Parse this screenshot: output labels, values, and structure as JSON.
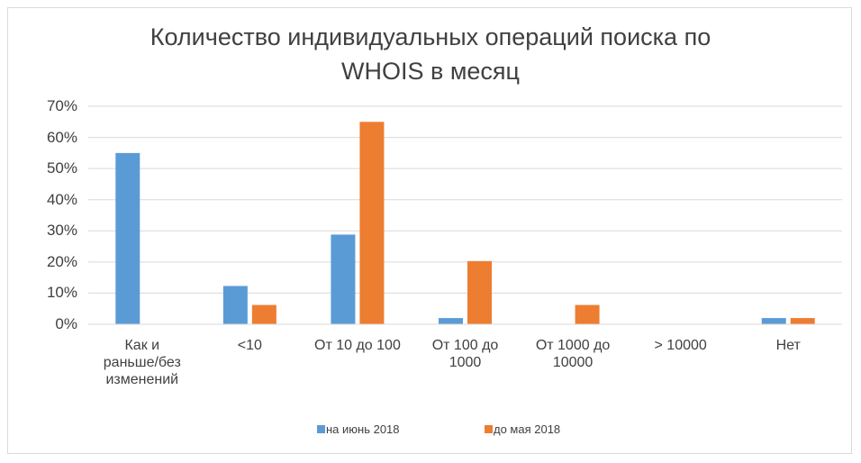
{
  "chart_data": {
    "type": "bar",
    "title": "Количество индивидуальных операций поиска по WHOIS в месяц",
    "categories": [
      "Как и раньше/без изменений",
      "<10",
      "От 10 до 100",
      "От 100 до 1000",
      "От 1000 до 10000",
      "> 10000",
      "Нет"
    ],
    "series": [
      {
        "name": "на июнь 2018",
        "color": "#5b9bd5",
        "values": [
          55,
          12.3,
          28.8,
          2,
          0,
          0,
          2
        ]
      },
      {
        "name": "до мая 2018",
        "color": "#ed7d31",
        "values": [
          0,
          6.2,
          65,
          20.3,
          6.2,
          0,
          2
        ]
      }
    ],
    "ylim": [
      0,
      70
    ],
    "yticks": [
      {
        "value": 0,
        "label": "0%"
      },
      {
        "value": 10,
        "label": "10%"
      },
      {
        "value": 20,
        "label": "20%"
      },
      {
        "value": 30,
        "label": "30%"
      },
      {
        "value": 40,
        "label": "40%"
      },
      {
        "value": 50,
        "label": "50%"
      },
      {
        "value": 60,
        "label": "60%"
      },
      {
        "value": 70,
        "label": "70%"
      }
    ],
    "grid": true,
    "legend": "bottom"
  }
}
